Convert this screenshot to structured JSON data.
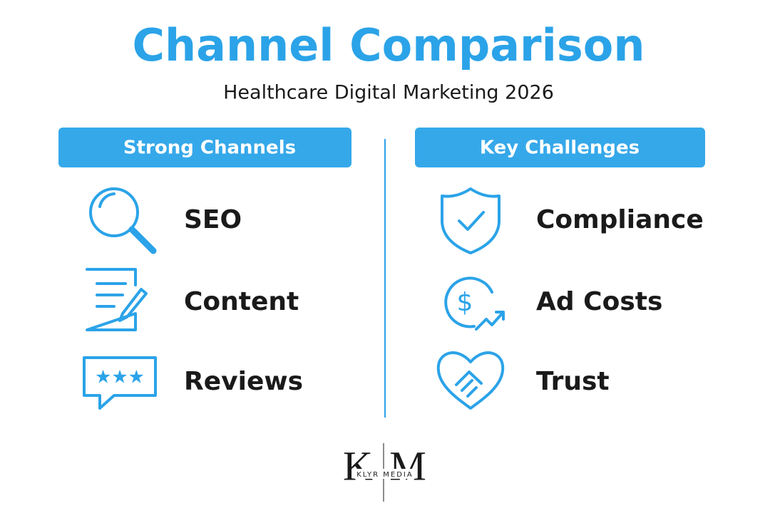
{
  "title": "Channel Comparison",
  "subtitle": "Healthcare Digital Marketing 2026",
  "columns": [
    {
      "header": "Strong Channels",
      "items": [
        "SEO",
        "Content",
        "Reviews"
      ]
    },
    {
      "header": "Key Challenges",
      "items": [
        "Compliance",
        "Ad Costs",
        "Trust"
      ]
    }
  ],
  "logo": {
    "left_letter": "K",
    "right_letter": "M",
    "name": "KLYR MEDIA"
  }
}
